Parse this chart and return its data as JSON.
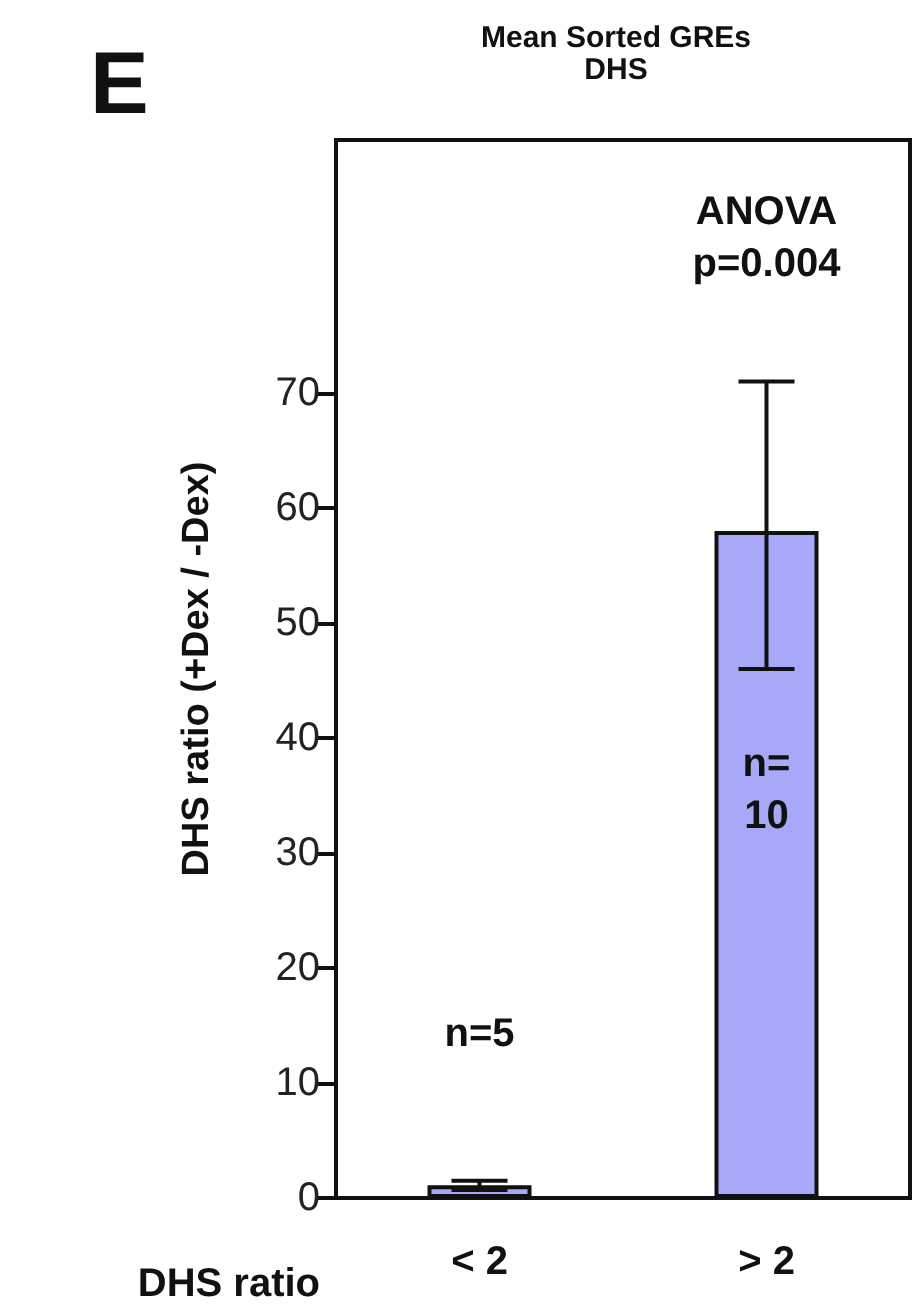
{
  "chart_data": {
    "type": "bar",
    "title": "Mean Sorted GREs\nDHS",
    "xlabel": "DHS ratio",
    "ylabel": "DHS ratio (+Dex / -Dex)",
    "categories": [
      "< 2",
      "> 2"
    ],
    "values": [
      1.1,
      58
    ],
    "errors": [
      0.4,
      [
        46,
        71
      ]
    ],
    "color": "#a8a8f8",
    "ylim": [
      0,
      92
    ],
    "yticks": [
      0,
      10,
      20,
      30,
      40,
      50,
      60,
      70
    ],
    "annotations": [
      "E",
      "n=5",
      "n=\n10",
      "ANOVA\np=0.004"
    ]
  }
}
